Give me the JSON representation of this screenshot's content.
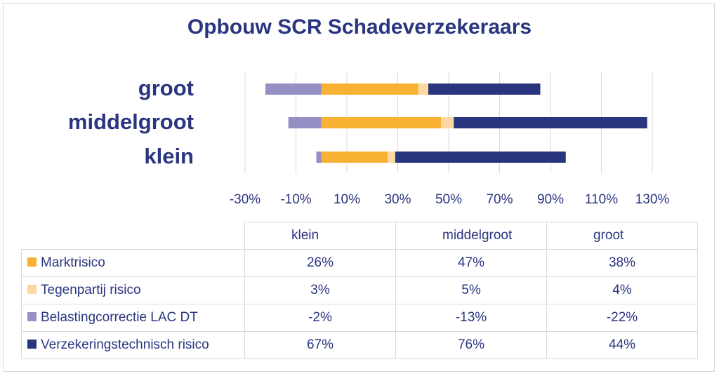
{
  "chart_data": {
    "type": "bar",
    "orientation": "horizontal",
    "stacked": true,
    "title": "Opbouw SCR Schadeverzekeraars",
    "categories": [
      "klein",
      "middelgroot",
      "groot"
    ],
    "series": [
      {
        "name": "Marktrisico",
        "color": "#f8b133",
        "values": [
          26,
          47,
          38
        ],
        "labels": [
          "26%",
          "47%",
          "38%"
        ]
      },
      {
        "name": "Tegenpartij risico",
        "color": "#fcd9a0",
        "values": [
          3,
          5,
          4
        ],
        "labels": [
          "3%",
          "5%",
          "4%"
        ]
      },
      {
        "name": "Belastingcorrectie LAC DT",
        "color": "#9590c4",
        "values": [
          -2,
          -13,
          -22
        ],
        "labels": [
          "-2%",
          "-13%",
          "-22%"
        ]
      },
      {
        "name": "Verzekeringstechnisch risico",
        "color": "#2a3580",
        "values": [
          67,
          76,
          44
        ],
        "labels": [
          "67%",
          "76%",
          "44%"
        ]
      }
    ],
    "xlim": [
      -30,
      130
    ],
    "xticks": [
      -30,
      -10,
      10,
      30,
      50,
      70,
      90,
      110,
      130
    ],
    "xtick_labels": [
      "-30%",
      "-10%",
      "10%",
      "30%",
      "50%",
      "70%",
      "90%",
      "110%",
      "130%"
    ],
    "grid": true,
    "legend": "data table below chart"
  }
}
